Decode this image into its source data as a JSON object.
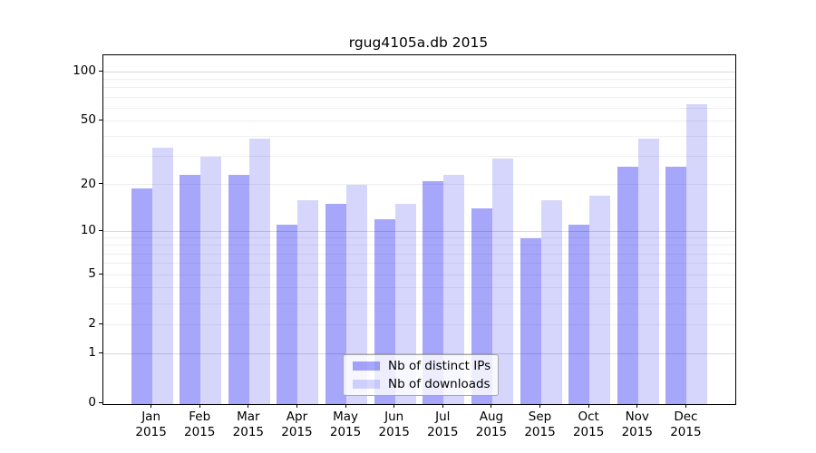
{
  "title": "rgug4105a.db 2015",
  "chart_data": {
    "type": "bar",
    "title": "rgug4105a.db 2015",
    "categories": [
      "Jan",
      "Feb",
      "Mar",
      "Apr",
      "May",
      "Jun",
      "Jul",
      "Aug",
      "Sep",
      "Oct",
      "Nov",
      "Dec"
    ],
    "xtick_year": "2015",
    "series": [
      {
        "name": "Nb of distinct IPs",
        "color": "rgba(0,0,240,0.35)",
        "values": [
          19,
          23,
          23,
          11,
          15,
          12,
          21,
          14,
          9,
          11,
          26,
          26
        ]
      },
      {
        "name": "Nb of downloads",
        "color": "rgba(0,0,240,0.16)",
        "values": [
          34,
          30,
          39,
          16,
          20,
          15,
          23,
          29,
          16,
          17,
          39,
          63
        ]
      }
    ],
    "xlabel": "",
    "ylabel": "",
    "yscale": "log1p",
    "ylim": [
      0,
      126
    ],
    "yticks": [
      0,
      1,
      2,
      5,
      10,
      20,
      50,
      100
    ],
    "ytick_labels": [
      "0",
      "1",
      "2",
      "5",
      "10",
      "20",
      "50",
      "100"
    ],
    "major_gridlines": [
      1,
      10,
      100
    ],
    "minor_gridlines": [
      2,
      3,
      4,
      5,
      6,
      7,
      8,
      9,
      20,
      30,
      40,
      50,
      60,
      70,
      80,
      90
    ],
    "grid": true,
    "legend_position": "lower center",
    "colors": {
      "spine": "#000000",
      "major_grid": "#d9d9d9",
      "minor_grid": "#efefef",
      "background": "#ffffff",
      "text": "#000000"
    }
  },
  "legend": {
    "items": [
      {
        "label": "Nb of distinct IPs"
      },
      {
        "label": "Nb of downloads"
      }
    ]
  }
}
